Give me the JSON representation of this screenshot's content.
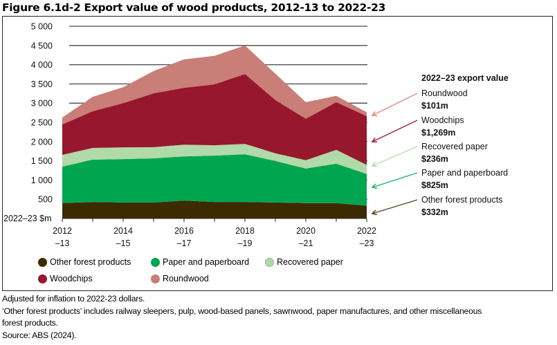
{
  "figure": {
    "title": "Figure 6.1d-2 Export value of wood products, 2012-13 to 2022-23"
  },
  "chart_data": {
    "type": "area",
    "stacked": true,
    "title": "Figure 6.1d-2 Export value of wood products, 2012-13 to 2022-23",
    "xlabel": "",
    "ylabel": "2022–23 $m",
    "ylim": [
      0,
      5000
    ],
    "yticks": [
      500,
      1000,
      1500,
      2000,
      2500,
      3000,
      3500,
      4000,
      4500,
      5000
    ],
    "ytick_labels": [
      "500",
      "1 000",
      "1 500",
      "2 000",
      "2 500",
      "3 000",
      "3 500",
      "4 000",
      "4 500",
      "5 000"
    ],
    "grid": "horizontal",
    "x": [
      "2012-13",
      "2013-14",
      "2014-15",
      "2015-16",
      "2016-17",
      "2017-18",
      "2018-19",
      "2019-20",
      "2020-21",
      "2021-22",
      "2022-23"
    ],
    "xtick_labels": [
      {
        "line1": "2012",
        "line2": "–13"
      },
      {
        "line1": "2014",
        "line2": "–15"
      },
      {
        "line1": "2016",
        "line2": "–17"
      },
      {
        "line1": "2018",
        "line2": "–19"
      },
      {
        "line1": "2020",
        "line2": "–21"
      },
      {
        "line1": "2022",
        "line2": "–23"
      }
    ],
    "series": [
      {
        "name": "Other forest products",
        "color": "#3d2b00",
        "values": [
          400,
          430,
          415,
          415,
          465,
          430,
          430,
          415,
          400,
          400,
          332
        ]
      },
      {
        "name": "Paper and paperboard",
        "color": "#00a64f",
        "values": [
          950,
          1100,
          1130,
          1150,
          1150,
          1205,
          1240,
          1080,
          900,
          1025,
          825
        ]
      },
      {
        "name": "Recovered paper",
        "color": "#b1d9a9",
        "values": [
          305,
          305,
          305,
          290,
          305,
          270,
          270,
          200,
          215,
          360,
          236
        ]
      },
      {
        "name": "Woodchips",
        "color": "#96172e",
        "values": [
          790,
          955,
          1150,
          1400,
          1480,
          1585,
          1820,
          1385,
          1080,
          1240,
          1269
        ]
      },
      {
        "name": "Roundwood",
        "color": "#c97e77",
        "values": [
          180,
          375,
          415,
          580,
          740,
          740,
          740,
          685,
          430,
          165,
          101
        ]
      }
    ],
    "legend": {
      "placement": "bottom",
      "entries": [
        "Other forest products",
        "Paper and paperboard",
        "Recovered paper",
        "Woodchips",
        "Roundwood"
      ]
    },
    "annotations": {
      "heading": "2022–23 export value",
      "items": [
        {
          "series": "Roundwood",
          "label": "Roundwood",
          "value": "$101m",
          "arrow_color": "#e28a84"
        },
        {
          "series": "Woodchips",
          "label": "Woodchips",
          "value": "$1,269m",
          "arrow_color": "#a11a3a"
        },
        {
          "series": "Recovered paper",
          "label": "Recovered paper",
          "value": "$236m",
          "arrow_color": "#b6dcae"
        },
        {
          "series": "Paper and paperboard",
          "label": "Paper and paperboard",
          "value": "$825m",
          "arrow_color": "#1fb866"
        },
        {
          "series": "Other forest products",
          "label": "Other forest products",
          "value": "$332m",
          "arrow_color": "#5a4420"
        }
      ]
    }
  },
  "notes": [
    "Adjusted for inflation to 2022-23 dollars.",
    "‘Other forest products’ includes railway sleepers, pulp, wood-based panels, sawnwood, paper manufactures, and other miscellaneous",
    "forest products.",
    "Source: ABS (2024)."
  ]
}
